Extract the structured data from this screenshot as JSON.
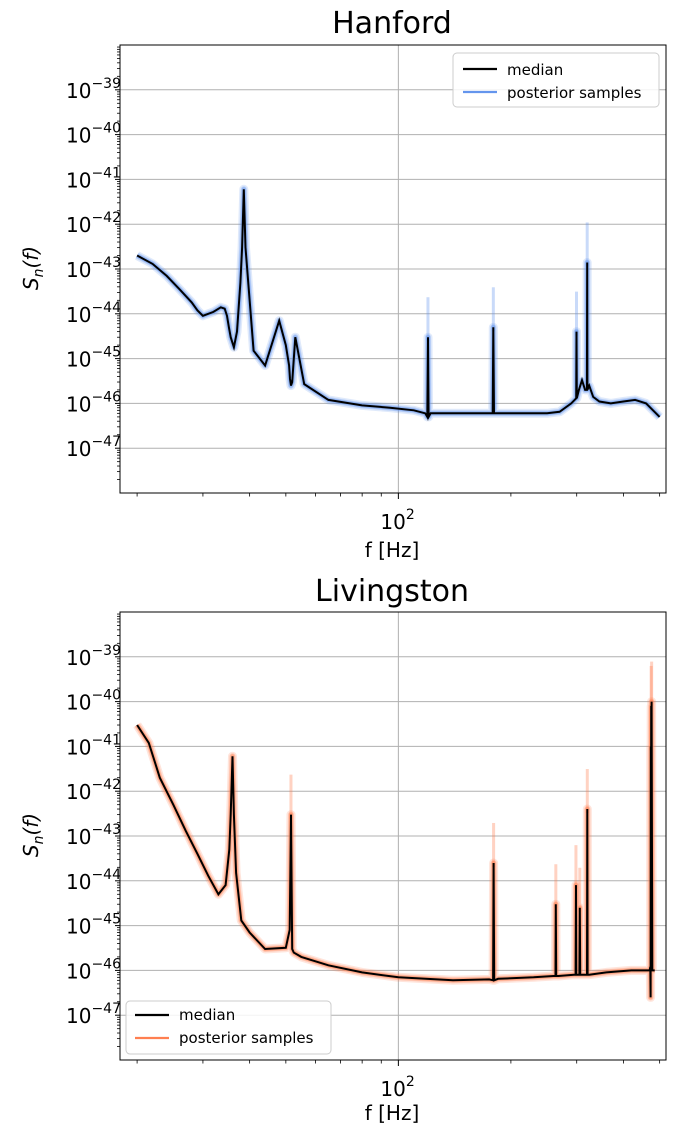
{
  "chart_data": [
    {
      "type": "line",
      "title": "Hanford",
      "xlabel": "f [Hz]",
      "ylabel_base": "S",
      "ylabel_sub": "n",
      "ylabel_arg": "(f)",
      "x_scale": "log",
      "y_scale": "log",
      "xlim": [
        18,
        520
      ],
      "ylim": [
        1e-48,
        1e-38
      ],
      "grid": true,
      "legend_position": "top-right",
      "x_ticks": [
        {
          "value": 100,
          "base": "10",
          "exp": "2"
        }
      ],
      "y_ticks": [
        {
          "value": 1e-39,
          "base": "10",
          "exp": "−39"
        },
        {
          "value": 1e-40,
          "base": "10",
          "exp": "−40"
        },
        {
          "value": 1e-41,
          "base": "10",
          "exp": "−41"
        },
        {
          "value": 1e-42,
          "base": "10",
          "exp": "−42"
        },
        {
          "value": 1e-43,
          "base": "10",
          "exp": "−43"
        },
        {
          "value": 1e-44,
          "base": "10",
          "exp": "−44"
        },
        {
          "value": 1e-45,
          "base": "10",
          "exp": "−45"
        },
        {
          "value": 1e-46,
          "base": "10",
          "exp": "−46"
        },
        {
          "value": 1e-47,
          "base": "10",
          "exp": "−47"
        }
      ],
      "series": [
        {
          "name": "median",
          "color": "#000000",
          "x": [
            20,
            22,
            24,
            26,
            28,
            29,
            30,
            32,
            33.5,
            34.3,
            34.8,
            35.2,
            35.6,
            36.3,
            37,
            37.8,
            38.2,
            38.6,
            39,
            41,
            44,
            48,
            50,
            51,
            51.3,
            51.6,
            52,
            53,
            56,
            65,
            80,
            95,
            110,
            118,
            119.5,
            120,
            120.5,
            122,
            140,
            175,
            178.8,
            179.5,
            180.2,
            182,
            220,
            250,
            270,
            290,
            299,
            299.6,
            300.2,
            304,
            310,
            316,
            319.5,
            320,
            320.5,
            324,
            332,
            345,
            370,
            400,
            430,
            460,
            480,
            500
          ],
          "y": [
            2e-43,
            1.3e-43,
            7e-44,
            3.5e-44,
            1.8e-44,
            1.2e-44,
            9e-45,
            1.1e-44,
            1.4e-44,
            1.3e-44,
            9e-45,
            5e-45,
            3e-45,
            1.8e-45,
            4e-45,
            5e-44,
            3e-43,
            6e-42,
            3e-43,
            1.5e-45,
            7e-46,
            7e-45,
            2e-45,
            7e-46,
            3.5e-46,
            2.5e-46,
            3e-46,
            3e-45,
            2.7e-46,
            1.2e-46,
            9e-47,
            8e-47,
            7e-47,
            6e-47,
            5e-47,
            3e-45,
            5e-47,
            6e-47,
            6e-47,
            6e-47,
            6e-47,
            5e-45,
            6e-47,
            6e-47,
            6e-47,
            6e-47,
            6.5e-47,
            1e-46,
            1.3e-46,
            4e-45,
            1.3e-46,
            2e-46,
            3.3e-46,
            2e-46,
            2e-46,
            1.4e-43,
            2e-46,
            2.5e-46,
            1.4e-46,
            1.1e-46,
            1e-46,
            1.1e-46,
            1.2e-46,
            1e-46,
            7e-47,
            5e-47
          ]
        },
        {
          "name": "posterior samples",
          "color": "#6495ed"
        }
      ]
    },
    {
      "type": "line",
      "title": "Livingston",
      "xlabel": "f [Hz]",
      "ylabel_base": "S",
      "ylabel_sub": "n",
      "ylabel_arg": "(f)",
      "x_scale": "log",
      "y_scale": "log",
      "xlim": [
        18,
        520
      ],
      "ylim": [
        1e-48,
        1e-38
      ],
      "grid": true,
      "legend_position": "bottom-left",
      "x_ticks": [
        {
          "value": 100,
          "base": "10",
          "exp": "2"
        }
      ],
      "y_ticks": [
        {
          "value": 1e-39,
          "base": "10",
          "exp": "−39"
        },
        {
          "value": 1e-40,
          "base": "10",
          "exp": "−40"
        },
        {
          "value": 1e-41,
          "base": "10",
          "exp": "−41"
        },
        {
          "value": 1e-42,
          "base": "10",
          "exp": "−42"
        },
        {
          "value": 1e-43,
          "base": "10",
          "exp": "−43"
        },
        {
          "value": 1e-44,
          "base": "10",
          "exp": "−44"
        },
        {
          "value": 1e-45,
          "base": "10",
          "exp": "−45"
        },
        {
          "value": 1e-46,
          "base": "10",
          "exp": "−46"
        },
        {
          "value": 1e-47,
          "base": "10",
          "exp": "−47"
        }
      ],
      "series": [
        {
          "name": "median",
          "color": "#000000",
          "x": [
            20,
            21.5,
            23,
            25,
            27,
            29,
            31,
            33,
            34.5,
            35.3,
            35.6,
            36,
            36.3,
            36.8,
            38,
            40,
            44,
            50,
            51.2,
            51.6,
            52,
            52.5,
            55,
            65,
            80,
            100,
            140,
            175,
            179.2,
            179.8,
            180.5,
            185,
            230,
            260,
            263.2,
            263.8,
            264.4,
            268,
            295,
            298,
            298.6,
            299.3,
            302,
            305,
            305.8,
            306.6,
            310,
            318,
            319.6,
            320.2,
            320.8,
            324,
            360,
            420,
            470,
            472,
            473,
            473.5,
            474,
            474.6,
            475.2,
            476,
            478,
            485
          ],
          "y": [
            3e-41,
            1.2e-41,
            2e-42,
            5e-43,
            1.3e-43,
            4e-44,
            1.3e-44,
            5e-45,
            8e-45,
            5e-44,
            3e-43,
            6e-42,
            3e-43,
            1.5e-44,
            1.3e-45,
            7e-46,
            3e-46,
            3.2e-46,
            8e-46,
            3e-43,
            3e-46,
            2.5e-46,
            2e-46,
            1.3e-46,
            9e-47,
            7e-47,
            6e-47,
            6.3e-47,
            6e-47,
            2.5e-44,
            6e-47,
            6.5e-47,
            7e-47,
            7.5e-47,
            7.5e-47,
            3e-45,
            7.5e-47,
            7.5e-47,
            8e-47,
            8e-47,
            8e-45,
            8e-47,
            8e-47,
            8e-47,
            2.5e-45,
            8e-47,
            8e-47,
            8e-47,
            8e-47,
            4e-43,
            8e-47,
            8e-47,
            9e-47,
            1e-46,
            1e-46,
            1.2e-46,
            2.5e-47,
            1e-41,
            2e-44,
            8e-41,
            2e-44,
            1e-40,
            1e-46,
            1e-46
          ]
        },
        {
          "name": "posterior samples",
          "color": "#ff7f50"
        }
      ]
    }
  ]
}
